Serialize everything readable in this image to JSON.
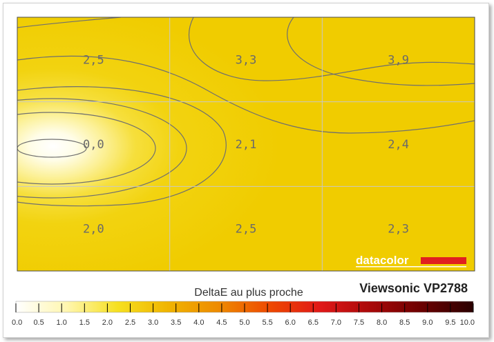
{
  "chart_data": {
    "type": "heatmap",
    "grid_rows": 3,
    "grid_cols": 3,
    "cells": [
      [
        "2,5",
        "3,3",
        "3,9"
      ],
      [
        "0,0",
        "2,1",
        "2,4"
      ],
      [
        "2,0",
        "2,5",
        "2,3"
      ]
    ],
    "values": [
      [
        2.5,
        3.3,
        3.9
      ],
      [
        0.0,
        2.1,
        2.4
      ],
      [
        2.0,
        2.5,
        2.3
      ]
    ],
    "colorbar": {
      "label": "DeltaE au plus proche",
      "ticks": [
        "0.0",
        "0.5",
        "1.0",
        "1.5",
        "2.0",
        "2.5",
        "3.0",
        "3.5",
        "4.0",
        "4.5",
        "5.0",
        "5.5",
        "6.0",
        "6.5",
        "7.0",
        "7.5",
        "8.0",
        "8.5",
        "9.0",
        "9.5",
        "10.0"
      ],
      "range": [
        0,
        10
      ],
      "colors": [
        "#ffffff",
        "#fff6b0",
        "#f6e020",
        "#f0b400",
        "#ee8a00",
        "#ee4800",
        "#e01818",
        "#a80808",
        "#6a0000",
        "#2a0000"
      ]
    },
    "title": "Viewsonic VP2788",
    "watermark": "datacolor",
    "grid": true
  }
}
